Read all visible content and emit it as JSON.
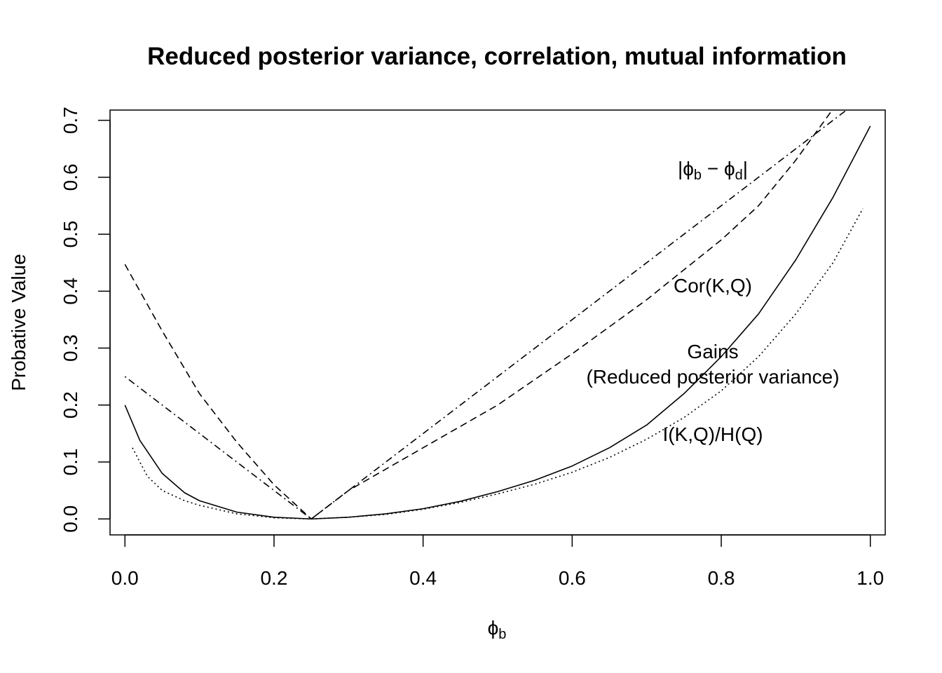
{
  "chart_data": {
    "type": "line",
    "title": "Reduced posterior variance, correlation, mutual information",
    "xlabel": {
      "main": "ϕ",
      "sub": "b"
    },
    "ylabel": "Probative Value",
    "xlim": [
      -0.02,
      1.02
    ],
    "ylim": [
      -0.028,
      0.718
    ],
    "grid": false,
    "legend": "none",
    "x_ticks": [
      "0.0",
      "0.2",
      "0.4",
      "0.6",
      "0.8",
      "1.0"
    ],
    "y_ticks": [
      "0.0",
      "0.1",
      "0.2",
      "0.3",
      "0.4",
      "0.5",
      "0.6",
      "0.7"
    ],
    "x_tick_values": [
      0,
      0.2,
      0.4,
      0.6,
      0.8,
      1.0
    ],
    "y_tick_values": [
      0,
      0.1,
      0.2,
      0.3,
      0.4,
      0.5,
      0.6,
      0.7
    ],
    "series": [
      {
        "key": "gains",
        "dash": "solid",
        "x": [
          0.0,
          0.02,
          0.05,
          0.08,
          0.1,
          0.15,
          0.2,
          0.25,
          0.3,
          0.35,
          0.4,
          0.45,
          0.5,
          0.55,
          0.6,
          0.65,
          0.7,
          0.75,
          0.8,
          0.85,
          0.9,
          0.95,
          1.0
        ],
        "values": [
          0.2,
          0.138,
          0.08,
          0.046,
          0.032,
          0.012,
          0.003,
          0.0,
          0.003,
          0.009,
          0.018,
          0.031,
          0.048,
          0.068,
          0.093,
          0.125,
          0.165,
          0.22,
          0.285,
          0.36,
          0.455,
          0.565,
          0.69
        ]
      },
      {
        "key": "mutual_information",
        "dash": "dotted",
        "x": [
          0.01,
          0.03,
          0.05,
          0.08,
          0.1,
          0.15,
          0.2,
          0.25,
          0.3,
          0.35,
          0.4,
          0.45,
          0.5,
          0.55,
          0.6,
          0.65,
          0.7,
          0.75,
          0.8,
          0.85,
          0.9,
          0.95,
          0.99
        ],
        "values": [
          0.125,
          0.075,
          0.05,
          0.032,
          0.024,
          0.009,
          0.002,
          0.0,
          0.003,
          0.008,
          0.017,
          0.029,
          0.044,
          0.061,
          0.082,
          0.108,
          0.14,
          0.178,
          0.225,
          0.285,
          0.36,
          0.45,
          0.545
        ]
      },
      {
        "key": "correlation",
        "dash": "dashed",
        "x": [
          0.0,
          0.05,
          0.1,
          0.15,
          0.2,
          0.25,
          0.3,
          0.4,
          0.5,
          0.6,
          0.7,
          0.8,
          0.85,
          0.9,
          0.95
        ],
        "values": [
          0.447,
          0.33,
          0.22,
          0.135,
          0.06,
          0.0,
          0.05,
          0.125,
          0.2,
          0.29,
          0.385,
          0.49,
          0.55,
          0.63,
          0.72
        ]
      },
      {
        "key": "abs_difference",
        "dash": "dashdot",
        "x": [
          0.0,
          0.25,
          0.97
        ],
        "values": [
          0.25,
          0.0,
          0.72
        ]
      }
    ],
    "annotations": [
      {
        "key": "abs_difference",
        "parts": [
          "|ϕ",
          "b",
          " − ϕ",
          "d",
          "|"
        ],
        "x": 0.8,
        "y": 0.62
      },
      {
        "key": "correlation",
        "text": "Cor(K,Q)",
        "x": 0.8,
        "y": 0.41
      },
      {
        "key": "gains_line1",
        "text": "Gains",
        "x": 0.8,
        "y": 0.295
      },
      {
        "key": "gains_line2",
        "text": "(Reduced posterior variance)",
        "x": 0.8,
        "y": 0.25
      },
      {
        "key": "mutual_information",
        "text": "I(K,Q)/H(Q)",
        "x": 0.8,
        "y": 0.15
      }
    ]
  }
}
